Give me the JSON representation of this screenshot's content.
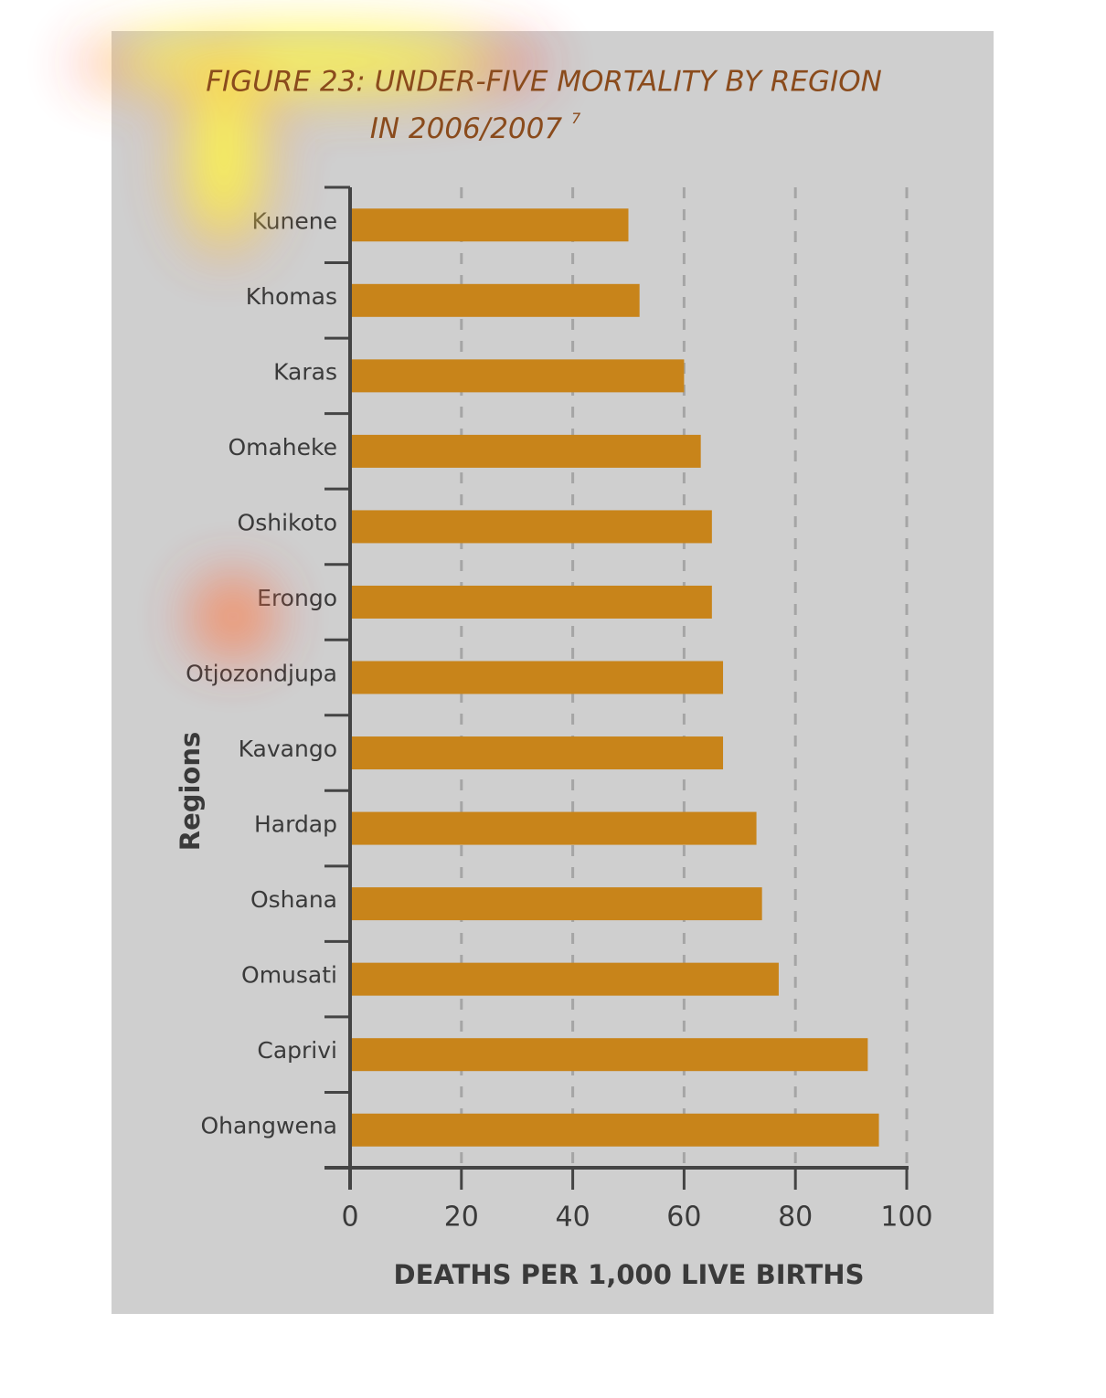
{
  "chart_data": {
    "type": "barh",
    "title": [
      "FIGURE 23: UNDER-FIVE MORTALITY BY REGION",
      "IN 2006/2007"
    ],
    "title_note": "7",
    "xlabel": "DEATHS PER 1,000 LIVE BIRTHS",
    "ylabel": "Regions",
    "categories": [
      "Kunene",
      "Khomas",
      "Karas",
      "Omaheke",
      "Oshikoto",
      "Erongo",
      "Otjozondjupa",
      "Kavango",
      "Hardap",
      "Oshana",
      "Omusati",
      "Caprivi",
      "Ohangwena"
    ],
    "values": [
      50,
      52,
      60,
      63,
      65,
      65,
      67,
      67,
      73,
      74,
      77,
      93,
      95
    ],
    "color": "#c8841a",
    "xlim": [
      0,
      100
    ],
    "xticks": [
      0,
      20,
      40,
      60,
      80,
      100
    ],
    "grid": true
  }
}
